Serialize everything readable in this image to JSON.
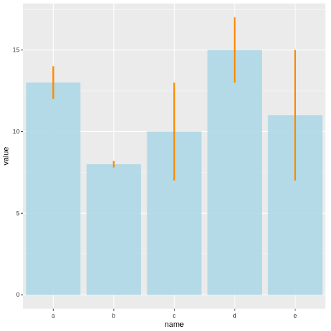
{
  "chart_data": {
    "type": "bar",
    "title": "",
    "xlabel": "name",
    "ylabel": "value",
    "categories": [
      "a",
      "b",
      "c",
      "d",
      "e"
    ],
    "values": [
      13,
      8,
      10,
      15,
      11
    ],
    "error_bars": {
      "low": [
        12,
        7.8,
        7,
        13,
        7
      ],
      "high": [
        14,
        8.2,
        13,
        17,
        15
      ]
    },
    "ylim": [
      -0.85,
      17.85
    ],
    "yticks": [
      0,
      5,
      10,
      15
    ],
    "ytick_labels": [
      "0",
      "5",
      "10",
      "15"
    ],
    "grid": true,
    "legend": "none",
    "colors": {
      "panel_background": "#ebebeb",
      "grid": "#ffffff",
      "bar_fill": "#add8e6",
      "error_bar": "#ff8c00"
    }
  }
}
